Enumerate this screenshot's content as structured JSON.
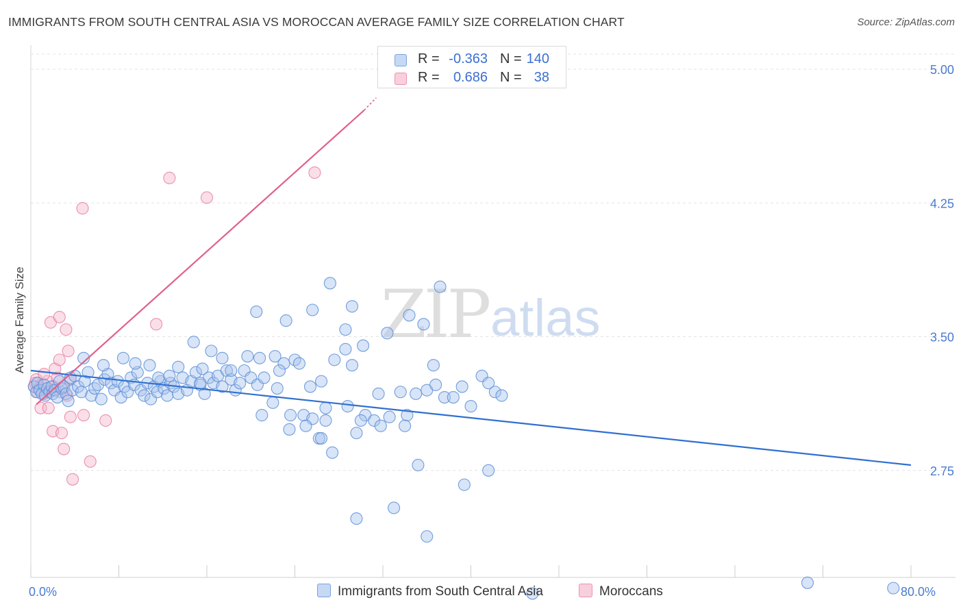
{
  "title": "IMMIGRANTS FROM SOUTH CENTRAL ASIA VS MOROCCAN AVERAGE FAMILY SIZE CORRELATION CHART",
  "source": "Source: ZipAtlas.com",
  "watermark": {
    "zip": "ZIP",
    "atlas": "atlas"
  },
  "colors": {
    "blue_fill": "#a9c4ee",
    "blue_stroke": "#5b8ed6",
    "blue_line": "#2f6fd1",
    "pink_fill": "#f5b8cc",
    "pink_stroke": "#e57fa3",
    "pink_line": "#e0608c",
    "grid": "#e3e3e3",
    "tick_text": "#4a7bd0"
  },
  "legend_top": [
    {
      "series": "blue",
      "r_label": "R =",
      "r_value": "-0.363",
      "n_label": "N =",
      "n_value": "140"
    },
    {
      "series": "pink",
      "r_label": "R =",
      "r_value": "0.686",
      "n_label": "N =",
      "n_value": "38"
    }
  ],
  "chart_data": {
    "type": "scatter",
    "title": "IMMIGRANTS FROM SOUTH CENTRAL ASIA VS MOROCCAN AVERAGE FAMILY SIZE CORRELATION CHART",
    "xlabel": "",
    "ylabel": "Average Family Size",
    "xlim": [
      0,
      80
    ],
    "ylim": [
      2.15,
      5.1
    ],
    "x_tick_labels": [
      {
        "value": 0,
        "label": "0.0%"
      },
      {
        "value": 80,
        "label": "80.0%"
      }
    ],
    "x_minor_ticks": [
      0,
      8,
      16,
      24,
      32,
      40,
      48,
      56,
      64,
      72,
      80
    ],
    "y_ticks": [
      {
        "value": 2.75,
        "label": "2.75"
      },
      {
        "value": 3.5,
        "label": "3.50"
      },
      {
        "value": 4.25,
        "label": "4.25"
      },
      {
        "value": 5.0,
        "label": "5.00"
      }
    ],
    "grid": true,
    "legend_placement": "bottom",
    "series": [
      {
        "name": "Immigrants from South Central Asia",
        "color": "blue",
        "r": -0.363,
        "n": 140,
        "trend": {
          "x": [
            0,
            80
          ],
          "y": [
            3.31,
            2.78
          ]
        },
        "points": [
          [
            0.3,
            3.22
          ],
          [
            0.5,
            3.19
          ],
          [
            0.6,
            3.24
          ],
          [
            0.8,
            3.2
          ],
          [
            1.0,
            3.18
          ],
          [
            1.2,
            3.23
          ],
          [
            1.3,
            3.17
          ],
          [
            1.5,
            3.21
          ],
          [
            1.7,
            3.19
          ],
          [
            1.9,
            3.22
          ],
          [
            2.0,
            3.18
          ],
          [
            2.2,
            3.2
          ],
          [
            2.4,
            3.16
          ],
          [
            2.6,
            3.25
          ],
          [
            2.8,
            3.21
          ],
          [
            3.0,
            3.22
          ],
          [
            3.2,
            3.18
          ],
          [
            3.4,
            3.14
          ],
          [
            3.6,
            3.27
          ],
          [
            3.8,
            3.2
          ],
          [
            4.0,
            3.28
          ],
          [
            4.3,
            3.22
          ],
          [
            4.6,
            3.19
          ],
          [
            4.9,
            3.25
          ],
          [
            5.2,
            3.3
          ],
          [
            5.5,
            3.17
          ],
          [
            5.8,
            3.21
          ],
          [
            6.1,
            3.23
          ],
          [
            6.4,
            3.15
          ],
          [
            6.7,
            3.26
          ],
          [
            7.0,
            3.29
          ],
          [
            7.3,
            3.24
          ],
          [
            7.6,
            3.2
          ],
          [
            7.9,
            3.25
          ],
          [
            8.2,
            3.16
          ],
          [
            8.5,
            3.22
          ],
          [
            8.8,
            3.19
          ],
          [
            9.1,
            3.27
          ],
          [
            9.4,
            3.23
          ],
          [
            9.7,
            3.3
          ],
          [
            10.0,
            3.2
          ],
          [
            10.3,
            3.17
          ],
          [
            10.6,
            3.24
          ],
          [
            10.9,
            3.15
          ],
          [
            11.2,
            3.22
          ],
          [
            11.5,
            3.19
          ],
          [
            11.8,
            3.25
          ],
          [
            12.1,
            3.21
          ],
          [
            12.4,
            3.17
          ],
          [
            12.7,
            3.24
          ],
          [
            13.0,
            3.22
          ],
          [
            13.4,
            3.18
          ],
          [
            13.8,
            3.27
          ],
          [
            14.2,
            3.2
          ],
          [
            14.6,
            3.25
          ],
          [
            15.0,
            3.3
          ],
          [
            15.4,
            3.23
          ],
          [
            15.8,
            3.18
          ],
          [
            16.2,
            3.27
          ],
          [
            16.6,
            3.24
          ],
          [
            17.0,
            3.28
          ],
          [
            17.4,
            3.22
          ],
          [
            17.8,
            3.31
          ],
          [
            18.2,
            3.26
          ],
          [
            18.6,
            3.2
          ],
          [
            19.0,
            3.24
          ],
          [
            19.4,
            3.31
          ],
          [
            20.0,
            3.27
          ],
          [
            20.6,
            3.23
          ],
          [
            21.2,
            3.27
          ],
          [
            4.8,
            3.38
          ],
          [
            6.6,
            3.34
          ],
          [
            8.4,
            3.38
          ],
          [
            9.5,
            3.35
          ],
          [
            10.8,
            3.34
          ],
          [
            11.6,
            3.27
          ],
          [
            12.6,
            3.28
          ],
          [
            13.4,
            3.33
          ],
          [
            14.8,
            3.47
          ],
          [
            15.6,
            3.32
          ],
          [
            16.4,
            3.42
          ],
          [
            17.4,
            3.38
          ],
          [
            18.2,
            3.31
          ],
          [
            19.7,
            3.39
          ],
          [
            20.8,
            3.38
          ],
          [
            22.2,
            3.39
          ],
          [
            23.0,
            3.35
          ],
          [
            24.0,
            3.37
          ],
          [
            25.4,
            3.22
          ],
          [
            26.4,
            3.25
          ],
          [
            27.6,
            3.37
          ],
          [
            28.6,
            3.43
          ],
          [
            29.2,
            3.34
          ],
          [
            30.2,
            3.45
          ],
          [
            31.6,
            3.18
          ],
          [
            33.6,
            3.19
          ],
          [
            35.0,
            3.18
          ],
          [
            36.0,
            3.2
          ],
          [
            36.8,
            3.23
          ],
          [
            37.6,
            3.16
          ],
          [
            38.4,
            3.16
          ],
          [
            39.2,
            3.22
          ],
          [
            40.0,
            3.11
          ],
          [
            41.0,
            3.28
          ],
          [
            41.6,
            3.24
          ],
          [
            42.2,
            3.19
          ],
          [
            42.8,
            3.17
          ],
          [
            15.4,
            3.24
          ],
          [
            22.4,
            3.21
          ],
          [
            21.0,
            3.06
          ],
          [
            22.6,
            3.31
          ],
          [
            23.6,
            3.06
          ],
          [
            24.8,
            3.06
          ],
          [
            25.6,
            3.04
          ],
          [
            26.8,
            3.1
          ],
          [
            28.8,
            3.11
          ],
          [
            30.4,
            3.06
          ],
          [
            31.2,
            3.03
          ],
          [
            32.6,
            3.05
          ],
          [
            34.2,
            3.06
          ],
          [
            36.6,
            3.34
          ],
          [
            30.0,
            3.03
          ],
          [
            23.2,
            3.59
          ],
          [
            34.4,
            3.62
          ],
          [
            28.6,
            3.54
          ],
          [
            20.5,
            3.64
          ],
          [
            25.6,
            3.65
          ],
          [
            29.2,
            3.67
          ],
          [
            37.2,
            3.78
          ],
          [
            24.4,
            3.35
          ],
          [
            27.2,
            3.8
          ],
          [
            35.7,
            3.57
          ],
          [
            32.4,
            3.52
          ],
          [
            22.0,
            3.13
          ],
          [
            23.5,
            2.98
          ],
          [
            25.0,
            3.0
          ],
          [
            26.8,
            3.03
          ],
          [
            26.2,
            2.93
          ],
          [
            27.4,
            2.85
          ],
          [
            29.6,
            2.96
          ],
          [
            31.8,
            3.0
          ],
          [
            34.0,
            3.0
          ],
          [
            35.2,
            2.78
          ],
          [
            33.0,
            2.54
          ],
          [
            29.6,
            2.48
          ],
          [
            41.6,
            2.75
          ],
          [
            39.4,
            2.67
          ],
          [
            26.4,
            2.93
          ],
          [
            36.0,
            2.38
          ],
          [
            70.6,
            2.12
          ],
          [
            78.4,
            2.09
          ],
          [
            45.6,
            2.06
          ]
        ]
      },
      {
        "name": "Moroccans",
        "color": "pink",
        "r": 0.686,
        "n": 38,
        "trend": {
          "x": [
            0.5,
            30.3
          ],
          "y": [
            3.12,
            4.77
          ]
        },
        "trend_dashed": {
          "x": [
            30.3,
            31.4
          ],
          "y": [
            4.77,
            4.84
          ]
        },
        "points": [
          [
            0.3,
            3.22
          ],
          [
            0.4,
            3.24
          ],
          [
            0.5,
            3.26
          ],
          [
            0.6,
            3.19
          ],
          [
            0.8,
            3.21
          ],
          [
            1.0,
            3.23
          ],
          [
            1.2,
            3.18
          ],
          [
            1.5,
            3.25
          ],
          [
            1.8,
            3.2
          ],
          [
            2.1,
            3.22
          ],
          [
            2.4,
            3.27
          ],
          [
            2.7,
            3.19
          ],
          [
            3.0,
            3.21
          ],
          [
            3.3,
            3.17
          ],
          [
            0.9,
            3.1
          ],
          [
            1.6,
            3.1
          ],
          [
            2.2,
            3.32
          ],
          [
            3.6,
            3.26
          ],
          [
            2.6,
            3.37
          ],
          [
            1.8,
            3.58
          ],
          [
            2.6,
            3.61
          ],
          [
            3.2,
            3.54
          ],
          [
            3.4,
            3.42
          ],
          [
            2.0,
            2.97
          ],
          [
            2.8,
            2.96
          ],
          [
            3.6,
            3.05
          ],
          [
            4.8,
            3.06
          ],
          [
            6.8,
            3.03
          ],
          [
            3.0,
            2.87
          ],
          [
            5.4,
            2.8
          ],
          [
            3.8,
            2.7
          ],
          [
            4.7,
            4.22
          ],
          [
            11.4,
            3.57
          ],
          [
            12.6,
            4.39
          ],
          [
            16.0,
            4.28
          ],
          [
            25.8,
            4.42
          ],
          [
            1.2,
            3.29
          ],
          [
            2.0,
            3.2
          ]
        ]
      }
    ]
  }
}
